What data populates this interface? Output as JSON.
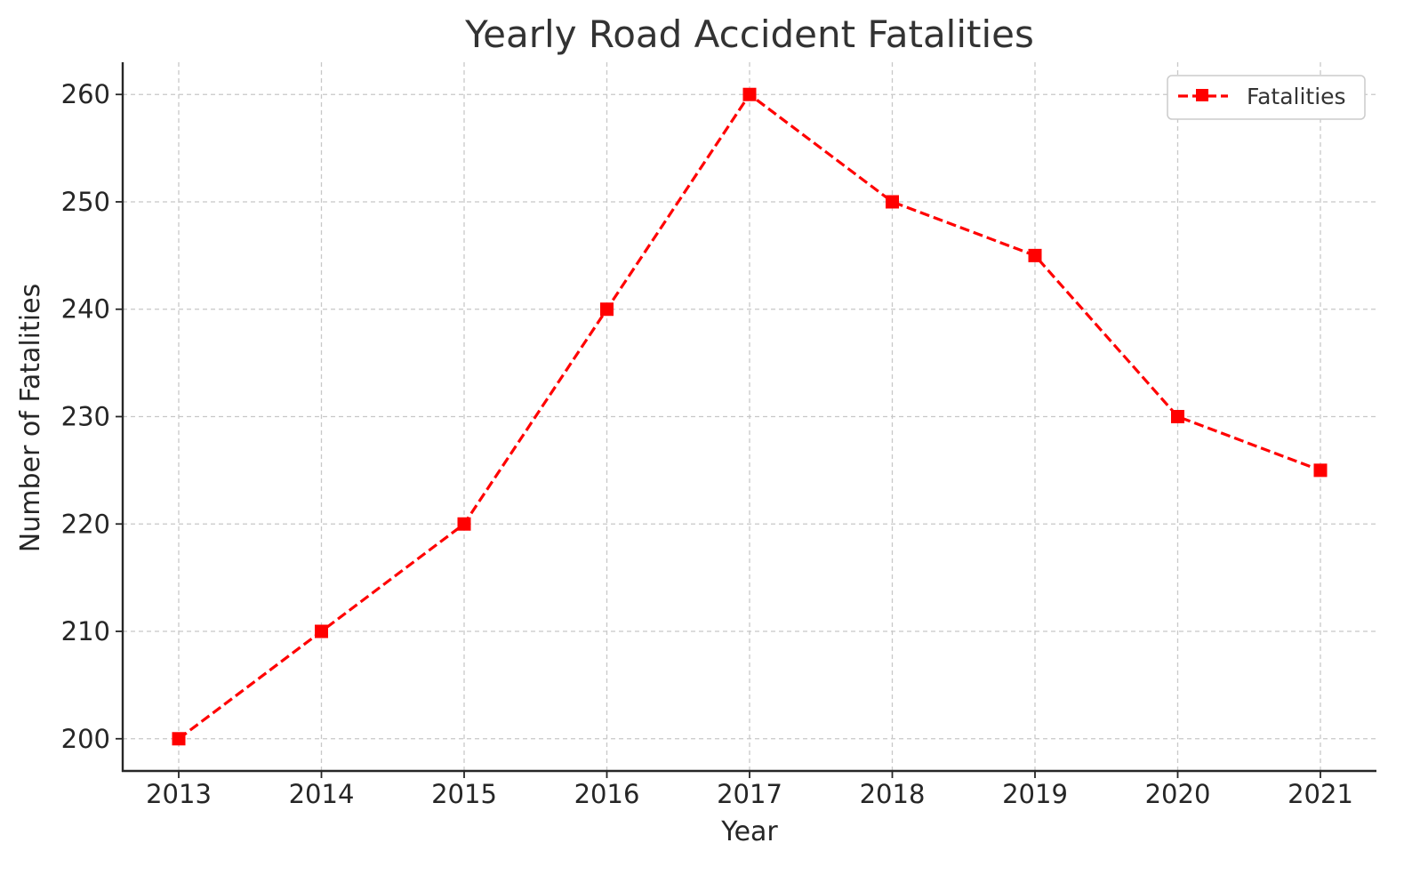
{
  "chart_data": {
    "type": "line",
    "title": "Yearly Road Accident Fatalities",
    "xlabel": "Year",
    "ylabel": "Number of Fatalities",
    "x": [
      "2013",
      "2014",
      "2015",
      "2016",
      "2017",
      "2018",
      "2019",
      "2020",
      "2021"
    ],
    "y_ticks": [
      "200",
      "210",
      "220",
      "230",
      "240",
      "250",
      "260"
    ],
    "ylim": [
      197,
      263
    ],
    "grid": true,
    "legend_position": "top-right",
    "series": [
      {
        "name": "Fatalities",
        "values": [
          200,
          210,
          220,
          240,
          260,
          250,
          245,
          230,
          225
        ],
        "color": "#ff0000",
        "line_style": "dashed",
        "marker": "square"
      }
    ]
  }
}
